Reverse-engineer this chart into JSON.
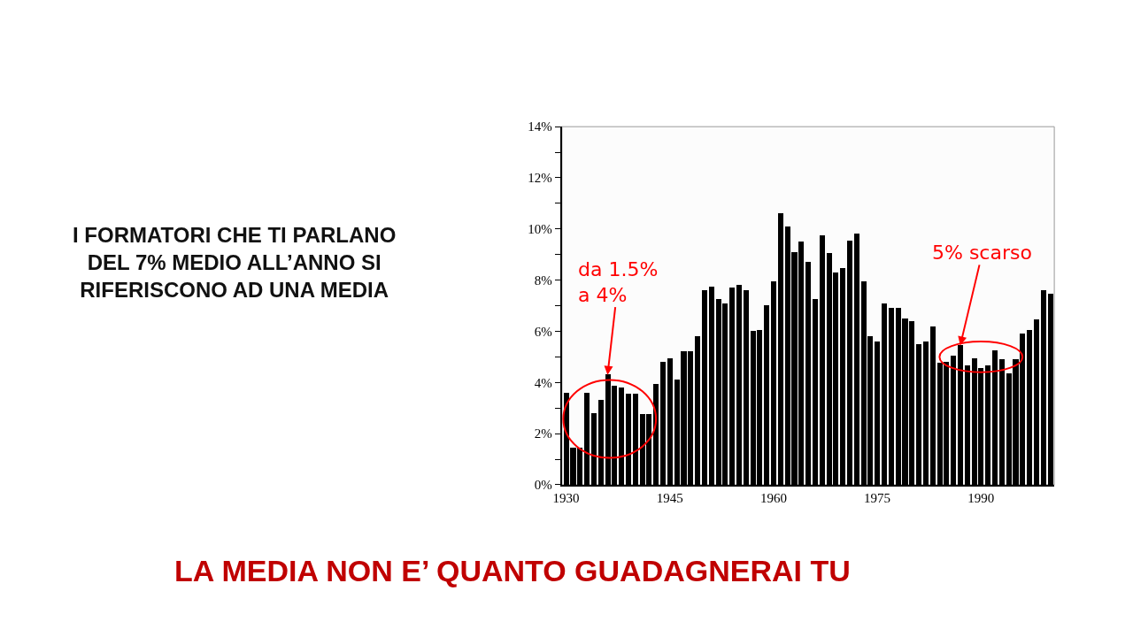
{
  "chart_data": {
    "type": "bar",
    "title": "I FORMATORI CHE TI PARLANO DEL 7% MEDIO ALL’ANNO SI RIFERISCONO AD UNA MEDIA",
    "subtitle": "LA MEDIA NON E’ QUANTO GUADAGNERAI TU",
    "x": [
      1930,
      1931,
      1932,
      1933,
      1934,
      1935,
      1936,
      1937,
      1938,
      1939,
      1940,
      1941,
      1942,
      1943,
      1944,
      1945,
      1946,
      1947,
      1948,
      1949,
      1950,
      1951,
      1952,
      1953,
      1954,
      1955,
      1956,
      1957,
      1958,
      1959,
      1960,
      1961,
      1962,
      1963,
      1964,
      1965,
      1966,
      1967,
      1968,
      1969,
      1970,
      1971,
      1972,
      1973,
      1974,
      1975,
      1976,
      1977,
      1978,
      1979,
      1980,
      1981,
      1982,
      1983,
      1984,
      1985,
      1986,
      1987,
      1988,
      1989,
      1990,
      1991,
      1992,
      1993,
      1994,
      1995,
      1996,
      1997,
      1998,
      1999,
      2000
    ],
    "values": [
      3.6,
      1.45,
      1.45,
      3.6,
      2.8,
      3.3,
      4.3,
      3.85,
      3.8,
      3.55,
      3.55,
      2.75,
      2.75,
      3.95,
      4.8,
      4.95,
      4.1,
      5.2,
      5.2,
      5.8,
      7.6,
      7.75,
      7.25,
      7.1,
      7.7,
      7.8,
      7.6,
      6.0,
      6.05,
      7.0,
      7.95,
      10.6,
      10.1,
      9.1,
      9.5,
      8.7,
      7.25,
      9.75,
      9.05,
      8.3,
      8.45,
      9.55,
      9.8,
      7.95,
      5.8,
      5.6,
      7.1,
      6.9,
      6.9,
      6.5,
      6.4,
      5.5,
      5.6,
      6.2,
      4.75,
      4.8,
      5.05,
      5.45,
      4.65,
      4.95,
      4.55,
      4.65,
      5.25,
      4.9,
      4.35,
      4.9,
      5.9,
      6.05,
      6.45,
      7.6,
      7.45
    ],
    "color": "#000000",
    "xlim": [
      1929.4,
      2000.6
    ],
    "xticks": [
      1930,
      1945,
      1960,
      1975,
      1990
    ],
    "ylim": [
      0,
      14
    ],
    "yticks": [
      {
        "value": 0,
        "label": "0%"
      },
      {
        "value": 1,
        "label": null
      },
      {
        "value": 2,
        "label": "2%"
      },
      {
        "value": 3,
        "label": null
      },
      {
        "value": 4,
        "label": "4%"
      },
      {
        "value": 5,
        "label": null
      },
      {
        "value": 6,
        "label": "6%"
      },
      {
        "value": 7,
        "label": null
      },
      {
        "value": 8,
        "label": "8%"
      },
      {
        "value": 9,
        "label": null
      },
      {
        "value": 10,
        "label": "10%"
      },
      {
        "value": 11,
        "label": null
      },
      {
        "value": 12,
        "label": "12%"
      },
      {
        "value": 13,
        "label": null
      },
      {
        "value": 14,
        "label": "14%"
      }
    ],
    "grid": false,
    "legend": false,
    "annotations": [
      {
        "text": "da 1.5%\na 4%",
        "x": 1936,
        "y": 4.3
      },
      {
        "text": "5% scarso",
        "x": 1987,
        "y": 5.45
      }
    ]
  }
}
